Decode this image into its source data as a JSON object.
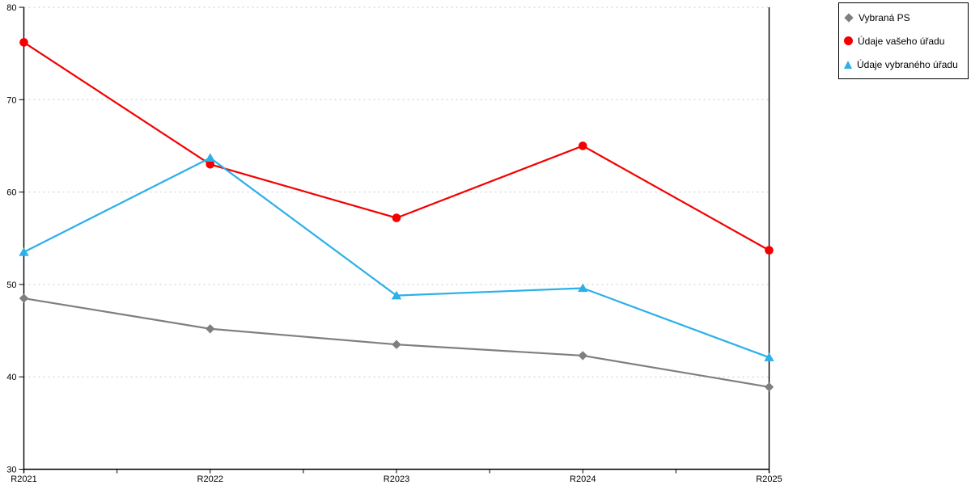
{
  "chart_data": {
    "type": "line",
    "title": "",
    "xlabel": "",
    "ylabel": "",
    "categories": [
      "R2021",
      "R2022",
      "R2023",
      "R2024",
      "R2025"
    ],
    "series": [
      {
        "name": "Vybraná PS",
        "marker": "diamond",
        "color": "#7f7f7f",
        "values": [
          48.5,
          45.2,
          43.5,
          42.3,
          38.9
        ]
      },
      {
        "name": "Údaje vašeho úřadu",
        "marker": "circle",
        "color": "#f40000",
        "values": [
          76.2,
          63.0,
          57.2,
          65.0,
          53.7
        ]
      },
      {
        "name": "Údaje vybraného úřadu",
        "marker": "triangle",
        "color": "#2bb0e8",
        "values": [
          53.5,
          63.7,
          48.8,
          49.6,
          42.1
        ]
      }
    ],
    "ylim": [
      30,
      80
    ],
    "y_ticks": [
      30,
      40,
      50,
      60,
      70,
      80
    ],
    "grid": "horizontal dotted gridlines at each y tick",
    "legend_position": "top-right"
  },
  "colors": {
    "background": "#ffffff",
    "axis": "#000000",
    "gridline": "#c9c9c9",
    "text": "#000000",
    "legend_border": "#000000"
  }
}
